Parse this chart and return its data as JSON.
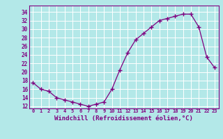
{
  "x": [
    0,
    1,
    2,
    3,
    4,
    5,
    6,
    7,
    8,
    9,
    10,
    11,
    12,
    13,
    14,
    15,
    16,
    17,
    18,
    19,
    20,
    21,
    22,
    23
  ],
  "y": [
    17.5,
    16.0,
    15.5,
    14.0,
    13.5,
    13.0,
    12.5,
    12.0,
    12.5,
    13.0,
    16.0,
    20.5,
    24.5,
    27.5,
    29.0,
    30.5,
    32.0,
    32.5,
    33.0,
    33.5,
    33.5,
    30.5,
    23.5,
    21.0
  ],
  "line_color": "#800080",
  "marker": "+",
  "markersize": 4,
  "linewidth": 0.9,
  "xlabel": "Windchill (Refroidissement éolien,°C)",
  "xlabel_fontsize": 6.5,
  "ytick_labels": [
    "12",
    "14",
    "16",
    "18",
    "20",
    "22",
    "24",
    "26",
    "28",
    "30",
    "32",
    "34"
  ],
  "ytick_values": [
    12,
    14,
    16,
    18,
    20,
    22,
    24,
    26,
    28,
    30,
    32,
    34
  ],
  "xtick_labels": [
    "0",
    "1",
    "2",
    "3",
    "4",
    "5",
    "6",
    "7",
    "8",
    "9",
    "10",
    "11",
    "12",
    "13",
    "14",
    "15",
    "16",
    "17",
    "18",
    "19",
    "20",
    "21",
    "22",
    "23"
  ],
  "ylim": [
    11.5,
    35.5
  ],
  "xlim": [
    -0.5,
    23.5
  ],
  "background_color": "#b3e8e8",
  "grid_color": "#ffffff",
  "tick_color": "#800080",
  "label_color": "#800080",
  "spine_color": "#800080"
}
